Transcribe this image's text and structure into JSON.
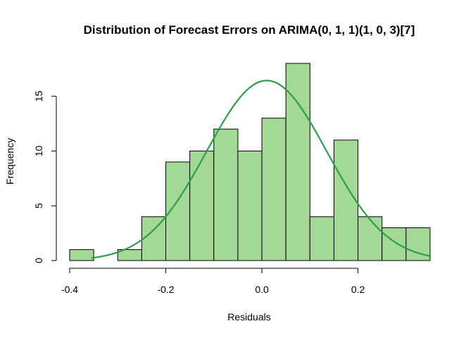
{
  "chart_data": {
    "type": "bar",
    "title": "Distribution of Forecast Errors on ARIMA(0, 1, 1)(1, 0, 3)[7]",
    "xlabel": "Residuals",
    "ylabel": "Frequency",
    "xlim": [
      -0.4,
      0.35
    ],
    "ylim": [
      0,
      18
    ],
    "x_ticks": [
      -0.4,
      -0.2,
      0.0,
      0.2
    ],
    "x_tick_labels": [
      "-0.4",
      "-0.2",
      "0.0",
      "0.2"
    ],
    "y_ticks": [
      0,
      5,
      10,
      15
    ],
    "y_tick_labels": [
      "0",
      "5",
      "10",
      "15"
    ],
    "bin_edges": [
      -0.4,
      -0.35,
      -0.3,
      -0.25,
      -0.2,
      -0.15,
      -0.1,
      -0.05,
      0.0,
      0.05,
      0.1,
      0.15,
      0.2,
      0.25,
      0.3,
      0.35
    ],
    "counts": [
      1,
      0,
      1,
      4,
      9,
      10,
      12,
      10,
      13,
      18,
      4,
      11,
      4,
      3,
      3
    ],
    "bar_color": "#a3d897",
    "curve": {
      "type": "normal-density",
      "mean": 0.01,
      "sd": 0.125,
      "x_range": [
        -0.355,
        0.35
      ],
      "color": "#2e9e4a"
    },
    "grid": false,
    "legend": "none"
  }
}
